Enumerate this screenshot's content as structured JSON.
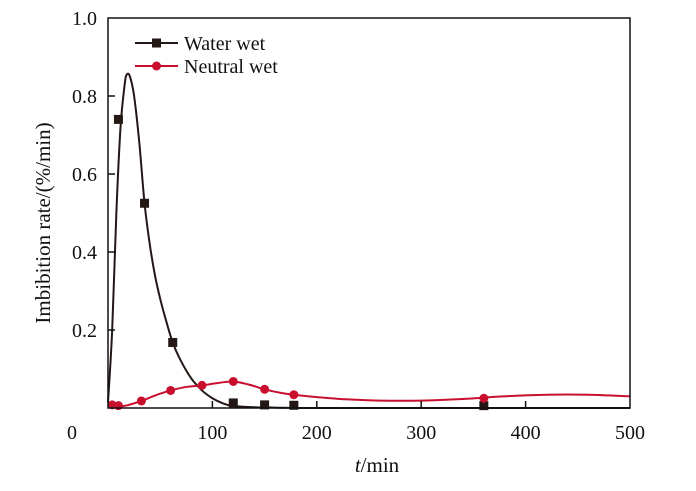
{
  "chart_data": {
    "type": "line",
    "title": "",
    "xlabel": "t/min",
    "xlabel_italic_part": "t",
    "xlabel_rest": "/min",
    "ylabel": "Imbibition rate/(%/min)",
    "xlim": [
      0,
      500
    ],
    "ylim": [
      0,
      1.0
    ],
    "xticks": [
      0,
      100,
      200,
      300,
      400,
      500
    ],
    "xtick_labels": [
      "0",
      "100",
      "200",
      "300",
      "400",
      "500"
    ],
    "yticks": [
      0.2,
      0.4,
      0.6,
      0.8,
      1.0
    ],
    "ytick_labels": [
      "0.2",
      "0.4",
      "0.6",
      "0.8",
      "1.0"
    ],
    "grid": false,
    "legend_position": "top-left",
    "series": [
      {
        "name": "Water wet",
        "color": "#231815",
        "marker": "square",
        "points": [
          [
            10,
            0.74
          ],
          [
            35,
            0.525
          ],
          [
            62,
            0.168
          ],
          [
            120,
            0.013
          ],
          [
            150,
            0.008
          ],
          [
            178,
            0.007
          ],
          [
            360,
            0.006
          ]
        ],
        "curve": [
          [
            0,
            0.015
          ],
          [
            4,
            0.2
          ],
          [
            8,
            0.5
          ],
          [
            12,
            0.72
          ],
          [
            16,
            0.83
          ],
          [
            18,
            0.855
          ],
          [
            21,
            0.85
          ],
          [
            25,
            0.8
          ],
          [
            30,
            0.68
          ],
          [
            35,
            0.525
          ],
          [
            40,
            0.42
          ],
          [
            45,
            0.34
          ],
          [
            50,
            0.28
          ],
          [
            55,
            0.23
          ],
          [
            62,
            0.168
          ],
          [
            70,
            0.12
          ],
          [
            80,
            0.075
          ],
          [
            90,
            0.045
          ],
          [
            100,
            0.025
          ],
          [
            110,
            0.012
          ],
          [
            120,
            0.005
          ],
          [
            140,
            0.002
          ],
          [
            160,
            0.001
          ],
          [
            200,
            0.0
          ],
          [
            300,
            0.0
          ],
          [
            500,
            0.0
          ]
        ]
      },
      {
        "name": "Neutral wet",
        "color": "#c8102e",
        "marker": "circle",
        "points": [
          [
            4,
            0.008
          ],
          [
            10,
            0.006
          ],
          [
            32,
            0.018
          ],
          [
            60,
            0.045
          ],
          [
            90,
            0.058
          ],
          [
            120,
            0.068
          ],
          [
            150,
            0.048
          ],
          [
            178,
            0.034
          ],
          [
            360,
            0.025
          ]
        ],
        "curve": [
          [
            0,
            0.003
          ],
          [
            10,
            0.003
          ],
          [
            20,
            0.008
          ],
          [
            32,
            0.018
          ],
          [
            45,
            0.032
          ],
          [
            60,
            0.045
          ],
          [
            75,
            0.054
          ],
          [
            90,
            0.058
          ],
          [
            105,
            0.064
          ],
          [
            120,
            0.068
          ],
          [
            135,
            0.06
          ],
          [
            150,
            0.048
          ],
          [
            165,
            0.039
          ],
          [
            178,
            0.034
          ],
          [
            200,
            0.028
          ],
          [
            230,
            0.022
          ],
          [
            260,
            0.019
          ],
          [
            300,
            0.019
          ],
          [
            340,
            0.023
          ],
          [
            380,
            0.03
          ],
          [
            420,
            0.034
          ],
          [
            460,
            0.034
          ],
          [
            500,
            0.03
          ]
        ]
      }
    ]
  }
}
